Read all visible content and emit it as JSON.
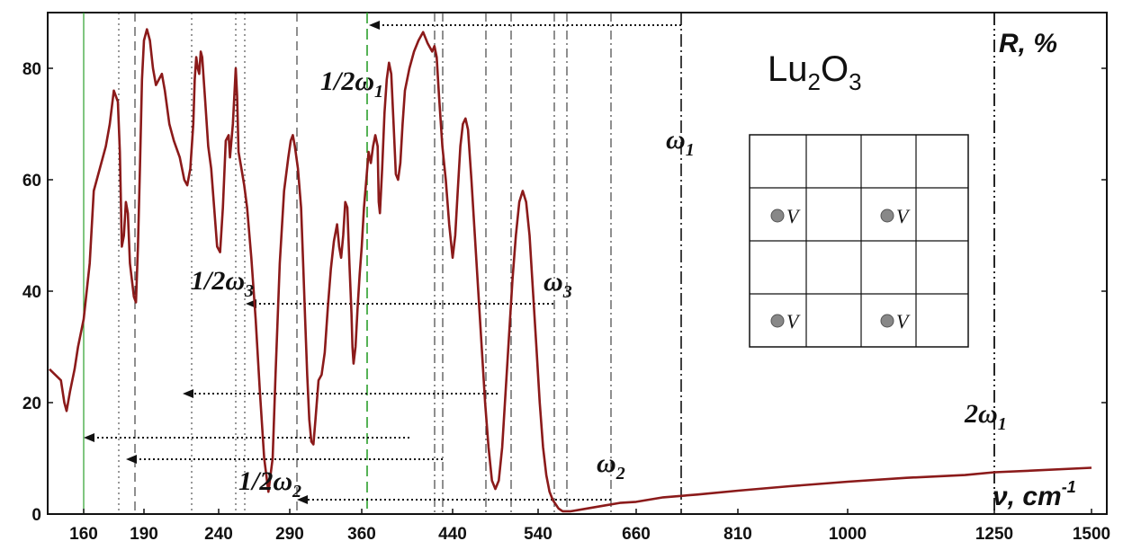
{
  "chart_data": {
    "type": "line",
    "title": "Lu",
    "title_sub1": "2",
    "title_mid": "O",
    "title_sub2": "3",
    "ylabel": "R, %",
    "xlabel_nu": "ν, cm",
    "xlabel_exp": "-1",
    "ylim": [
      0,
      90
    ],
    "grid": false,
    "x_ticks": [
      "160",
      "190",
      "240",
      "290",
      "360",
      "440",
      "540",
      "660",
      "810",
      "1000",
      "1250",
      "1500"
    ],
    "y_ticks": [
      0,
      20,
      40,
      60,
      80
    ],
    "series": [
      {
        "color": "#8b1a1a",
        "points": [
          [
            130,
            26
          ],
          [
            140,
            24
          ],
          [
            143,
            20
          ],
          [
            145,
            18.5
          ],
          [
            148,
            22
          ],
          [
            152,
            26
          ],
          [
            155,
            30
          ],
          [
            158,
            33
          ],
          [
            160,
            35
          ],
          [
            163,
            45
          ],
          [
            165,
            58
          ],
          [
            168,
            62
          ],
          [
            171,
            66
          ],
          [
            173,
            70
          ],
          [
            175,
            76
          ],
          [
            177,
            74
          ],
          [
            178,
            65
          ],
          [
            179,
            48
          ],
          [
            180,
            50
          ],
          [
            181,
            56
          ],
          [
            182,
            54
          ],
          [
            183,
            45
          ],
          [
            185,
            39
          ],
          [
            186,
            38
          ],
          [
            187,
            48
          ],
          [
            188,
            62
          ],
          [
            189,
            78
          ],
          [
            190,
            85
          ],
          [
            192,
            87
          ],
          [
            194,
            85
          ],
          [
            196,
            80
          ],
          [
            198,
            77
          ],
          [
            200,
            78
          ],
          [
            202,
            79
          ],
          [
            204,
            76
          ],
          [
            207,
            70
          ],
          [
            210,
            67
          ],
          [
            214,
            64
          ],
          [
            217,
            60
          ],
          [
            219,
            59
          ],
          [
            221,
            62
          ],
          [
            223,
            70
          ],
          [
            224,
            78
          ],
          [
            225,
            82
          ],
          [
            226,
            80
          ],
          [
            227,
            79
          ],
          [
            228,
            83
          ],
          [
            229,
            82
          ],
          [
            231,
            74
          ],
          [
            233,
            66
          ],
          [
            235,
            62
          ],
          [
            237,
            55
          ],
          [
            239,
            48
          ],
          [
            241,
            47
          ],
          [
            243,
            55
          ],
          [
            245,
            67
          ],
          [
            247,
            68
          ],
          [
            248,
            64
          ],
          [
            250,
            70
          ],
          [
            252,
            80
          ],
          [
            253,
            75
          ],
          [
            254,
            65
          ],
          [
            256,
            62
          ],
          [
            258,
            59
          ],
          [
            260,
            55
          ],
          [
            263,
            46
          ],
          [
            266,
            35
          ],
          [
            269,
            22
          ],
          [
            272,
            10
          ],
          [
            275,
            4
          ],
          [
            278,
            10
          ],
          [
            280,
            25
          ],
          [
            283,
            45
          ],
          [
            286,
            58
          ],
          [
            289,
            64
          ],
          [
            291,
            67
          ],
          [
            293,
            68
          ],
          [
            295,
            66
          ],
          [
            298,
            62
          ],
          [
            301,
            55
          ],
          [
            303,
            45
          ],
          [
            305,
            35
          ],
          [
            307,
            25
          ],
          [
            309,
            17
          ],
          [
            311,
            13
          ],
          [
            313,
            12.5
          ],
          [
            315,
            17
          ],
          [
            318,
            24
          ],
          [
            321,
            25
          ],
          [
            324,
            29
          ],
          [
            327,
            37
          ],
          [
            330,
            44
          ],
          [
            333,
            49
          ],
          [
            336,
            52
          ],
          [
            338,
            48
          ],
          [
            340,
            46
          ],
          [
            342,
            50
          ],
          [
            344,
            56
          ],
          [
            346,
            55
          ],
          [
            348,
            45
          ],
          [
            350,
            36
          ],
          [
            351,
            30
          ],
          [
            352,
            27
          ],
          [
            354,
            30
          ],
          [
            356,
            37
          ],
          [
            358,
            43
          ],
          [
            360,
            48
          ],
          [
            362,
            55
          ],
          [
            364,
            60
          ],
          [
            366,
            65
          ],
          [
            368,
            63
          ],
          [
            370,
            66
          ],
          [
            372,
            68
          ],
          [
            374,
            66
          ],
          [
            375,
            56
          ],
          [
            376,
            54
          ],
          [
            378,
            62
          ],
          [
            380,
            72
          ],
          [
            382,
            78
          ],
          [
            384,
            81
          ],
          [
            386,
            79
          ],
          [
            388,
            70
          ],
          [
            390,
            61
          ],
          [
            392,
            60
          ],
          [
            394,
            63
          ],
          [
            396,
            70
          ],
          [
            398,
            76
          ],
          [
            402,
            80
          ],
          [
            406,
            83
          ],
          [
            410,
            85
          ],
          [
            414,
            86.5
          ],
          [
            418,
            84.5
          ],
          [
            422,
            83
          ],
          [
            424,
            84
          ],
          [
            426,
            82
          ],
          [
            428,
            75
          ],
          [
            431,
            66
          ],
          [
            434,
            60
          ],
          [
            437,
            52
          ],
          [
            440,
            46
          ],
          [
            443,
            50
          ],
          [
            446,
            58
          ],
          [
            449,
            66
          ],
          [
            452,
            70
          ],
          [
            455,
            71
          ],
          [
            458,
            69
          ],
          [
            462,
            60
          ],
          [
            466,
            50
          ],
          [
            470,
            40
          ],
          [
            474,
            30
          ],
          [
            478,
            20
          ],
          [
            482,
            12
          ],
          [
            486,
            6
          ],
          [
            490,
            4.5
          ],
          [
            494,
            6
          ],
          [
            498,
            12
          ],
          [
            502,
            22
          ],
          [
            506,
            32
          ],
          [
            510,
            42
          ],
          [
            514,
            50
          ],
          [
            518,
            56
          ],
          [
            522,
            58
          ],
          [
            526,
            56
          ],
          [
            530,
            50
          ],
          [
            534,
            40
          ],
          [
            538,
            30
          ],
          [
            542,
            20
          ],
          [
            546,
            12
          ],
          [
            550,
            7
          ],
          [
            554,
            4
          ],
          [
            558,
            2.5
          ],
          [
            565,
            1
          ],
          [
            570,
            0.5
          ],
          [
            580,
            0.5
          ],
          [
            600,
            1
          ],
          [
            620,
            1.5
          ],
          [
            640,
            2
          ],
          [
            660,
            2.2
          ],
          [
            700,
            3
          ],
          [
            750,
            3.5
          ],
          [
            810,
            4.2
          ],
          [
            900,
            5
          ],
          [
            1000,
            5.8
          ],
          [
            1100,
            6.5
          ],
          [
            1200,
            7
          ],
          [
            1250,
            7.5
          ],
          [
            1350,
            7.8
          ],
          [
            1500,
            8.3
          ]
        ]
      }
    ],
    "annotations": {
      "half_w1": "1/2ω",
      "half_w1_sub": "1",
      "half_w3": "1/2ω",
      "half_w3_sub": "3",
      "half_w2": "1/2ω",
      "half_w2_sub": "2",
      "w1": "ω",
      "w1_sub": "1",
      "w2": "ω",
      "w2_sub": "2",
      "w3": "ω",
      "w3_sub": "3",
      "two_w1": "2ω",
      "two_w1_sub": "1",
      "vacancy": "V"
    }
  }
}
